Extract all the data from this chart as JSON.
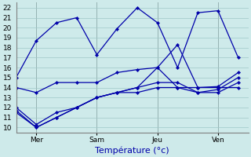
{
  "xlabel": "Température (°c)",
  "bg_color": "#ceeaea",
  "grid_color": "#a0c8c8",
  "line_color": "#0000aa",
  "spine_color": "#808080",
  "ylim": [
    9.5,
    22.5
  ],
  "yticks": [
    10,
    11,
    12,
    13,
    14,
    15,
    16,
    17,
    18,
    19,
    20,
    21,
    22
  ],
  "xtick_labels": [
    "Mer",
    "Sam",
    "Jeu",
    "Ven"
  ],
  "xtick_positions": [
    1,
    4,
    7,
    10
  ],
  "xlim": [
    0,
    11.5
  ],
  "lines": [
    {
      "x": [
        0,
        1,
        2,
        3,
        4,
        5,
        6,
        7,
        8,
        9,
        10,
        11
      ],
      "y": [
        15,
        18.7,
        20.5,
        21,
        17.3,
        19.9,
        22,
        20.5,
        16.0,
        21.5,
        21.7,
        17
      ]
    },
    {
      "x": [
        0,
        1,
        2,
        3,
        4,
        5,
        6,
        7,
        8,
        9,
        10,
        11
      ],
      "y": [
        14.0,
        13.5,
        14.5,
        14.5,
        14.5,
        15.5,
        15.8,
        16.0,
        14.0,
        14.0,
        14.1,
        15.5
      ]
    },
    {
      "x": [
        0,
        1,
        2,
        3,
        4,
        5,
        6,
        7,
        8,
        9,
        10,
        11
      ],
      "y": [
        12.0,
        10.3,
        11.5,
        12.0,
        13.0,
        13.5,
        14.0,
        16.0,
        18.3,
        14.0,
        14.0,
        14.0
      ]
    },
    {
      "x": [
        0,
        1,
        2,
        3,
        4,
        5,
        6,
        7,
        8,
        9,
        10,
        11
      ],
      "y": [
        11.7,
        10.0,
        11.0,
        12.0,
        13.0,
        13.5,
        14.0,
        14.5,
        14.5,
        13.5,
        13.8,
        15.0
      ]
    },
    {
      "x": [
        0,
        1,
        2,
        3,
        4,
        5,
        6,
        7,
        8,
        9,
        10,
        11
      ],
      "y": [
        11.5,
        10.0,
        11.0,
        12.0,
        13.0,
        13.5,
        13.5,
        14.0,
        14.0,
        13.5,
        13.5,
        14.5
      ]
    }
  ],
  "tick_fontsize": 6.5,
  "xlabel_fontsize": 8,
  "xlabel_color": "#0000aa"
}
